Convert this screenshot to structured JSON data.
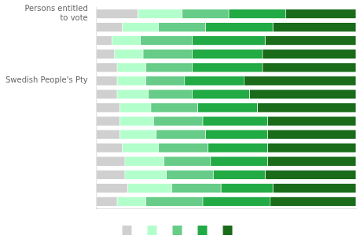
{
  "chart_data": {
    "type": "bar",
    "orientation": "horizontal",
    "stacked": true,
    "categories": [
      "Persons entitled\nto vote",
      null,
      null,
      null,
      null,
      "Swedish People's Pty",
      null,
      null,
      null,
      null,
      null,
      null,
      null,
      null,
      null
    ],
    "series": [
      {
        "color": "#d0d0d0",
        "values": [
          16,
          10,
          6,
          7,
          8,
          8,
          8,
          9,
          9,
          9,
          10,
          11,
          11,
          12,
          8
        ]
      },
      {
        "color": "#b3ffcc",
        "values": [
          17,
          14,
          11,
          11,
          11,
          11,
          12,
          12,
          13,
          14,
          14,
          15,
          16,
          17,
          11
        ]
      },
      {
        "color": "#66cc88",
        "values": [
          18,
          18,
          20,
          19,
          18,
          15,
          17,
          18,
          19,
          19,
          19,
          18,
          18,
          19,
          22
        ]
      },
      {
        "color": "#22aa44",
        "values": [
          22,
          26,
          28,
          27,
          27,
          23,
          22,
          23,
          25,
          24,
          23,
          22,
          20,
          20,
          26
        ]
      },
      {
        "color": "#1a6b1a",
        "values": [
          27,
          32,
          35,
          36,
          36,
          43,
          41,
          38,
          34,
          34,
          34,
          34,
          35,
          32,
          33
        ]
      }
    ],
    "xlim": [
      0,
      100
    ],
    "tick_labels": "y",
    "grid": false,
    "legend": "bottom"
  }
}
